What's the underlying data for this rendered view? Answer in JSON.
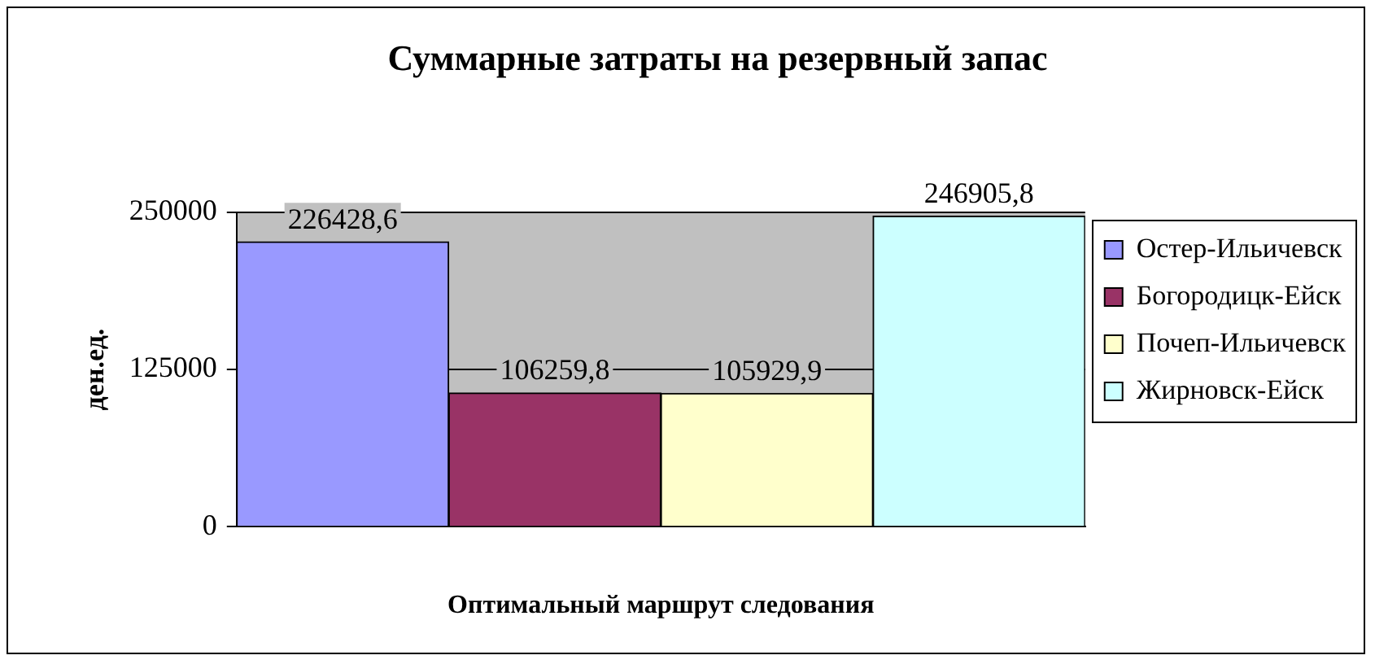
{
  "chart_data": {
    "type": "bar",
    "title": "Суммарные затраты на резервный запас",
    "xlabel": "Оптимальный маршрут следования",
    "ylabel": "ден.ед.",
    "categories": [
      null
    ],
    "series": [
      {
        "name": "Остер-Ильичевск",
        "color": "#9999ff",
        "values": [
          226428.6
        ],
        "value_labels": [
          "226428,6"
        ]
      },
      {
        "name": "Богородицк-Ейск",
        "color": "#993366",
        "values": [
          106259.8
        ],
        "value_labels": [
          "106259,8"
        ]
      },
      {
        "name": "Почеп-Ильичевск",
        "color": "#ffffcc",
        "values": [
          105929.9
        ],
        "value_labels": [
          "105929,9"
        ]
      },
      {
        "name": "Жирновск-Ейск",
        "color": "#ccffff",
        "values": [
          246905.8
        ],
        "value_labels": [
          "246905,8"
        ]
      }
    ],
    "ylim": [
      0,
      250000
    ],
    "yticks": [
      0,
      125000,
      250000
    ],
    "grid": "y",
    "legend": "right"
  }
}
